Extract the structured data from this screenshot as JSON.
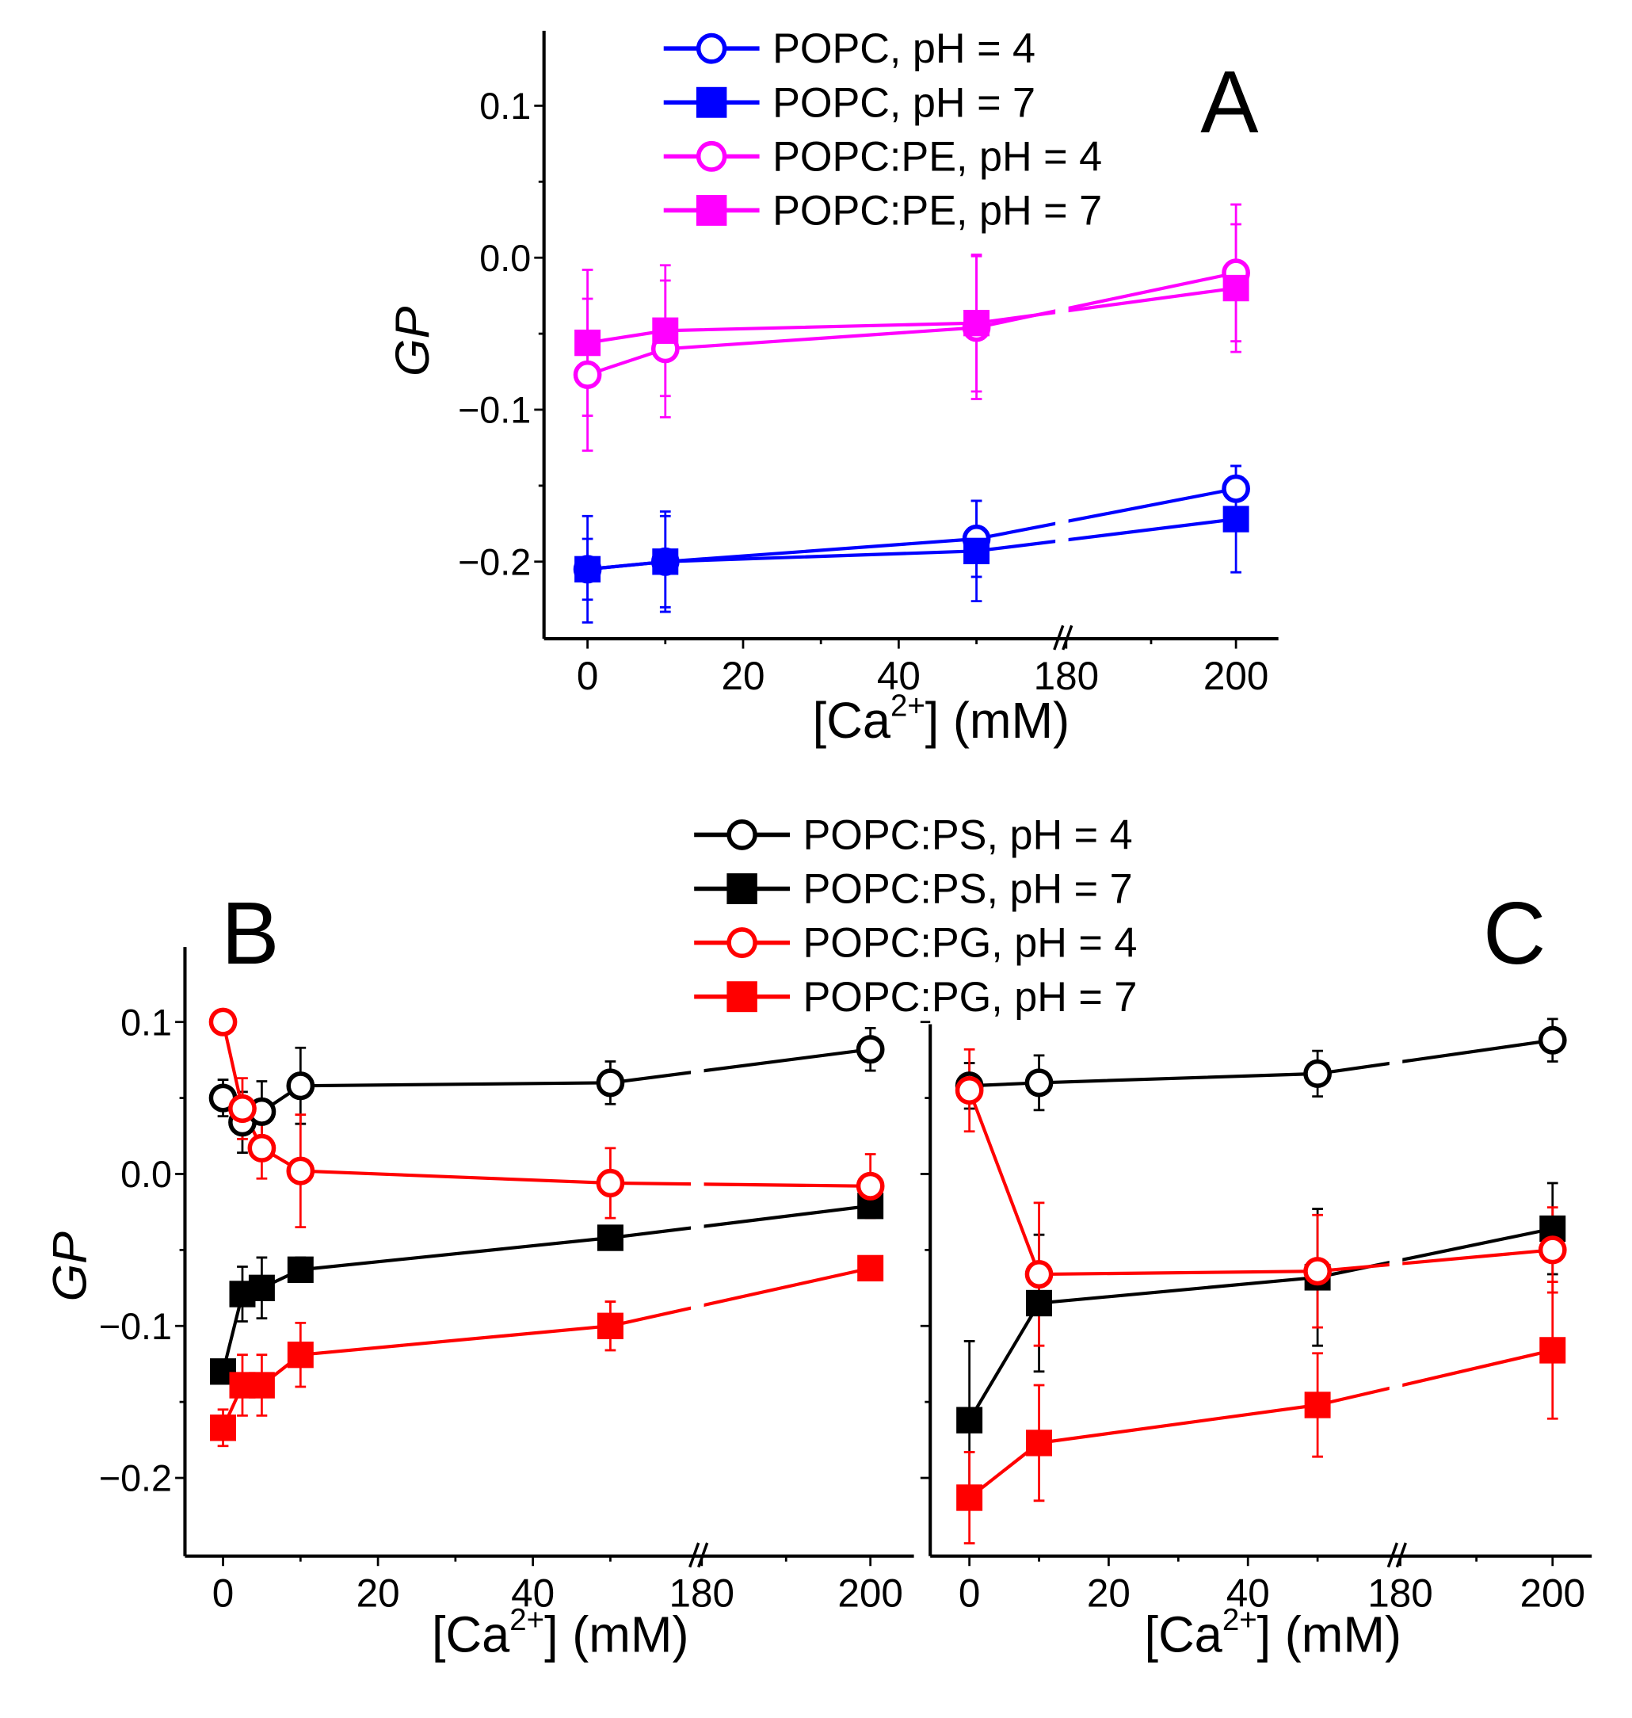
{
  "chart_data": [
    {
      "type": "line",
      "panel": "A",
      "xlabel": "[Ca2+] (mM)",
      "ylabel": "GP",
      "x_ticks": [
        "0",
        "20",
        "40",
        "180",
        "200"
      ],
      "y_ticks": [
        "0.1",
        "0.0",
        "−0.1",
        "−0.2"
      ],
      "ylim": [
        -0.25,
        0.15
      ],
      "x_break": [
        50,
        180
      ],
      "series": [
        {
          "name": "POPC, pH = 4",
          "color": "#0000ff",
          "marker": "open-circle",
          "x": [
            0,
            10,
            50,
            200
          ],
          "y": [
            -0.205,
            -0.2,
            -0.185,
            -0.152
          ],
          "err": [
            0.02,
            0.03,
            0.025,
            0.015
          ]
        },
        {
          "name": "POPC, pH = 7",
          "color": "#0000ff",
          "marker": "filled-square",
          "x": [
            0,
            10,
            50,
            200
          ],
          "y": [
            -0.205,
            -0.2,
            -0.193,
            -0.172
          ],
          "err": [
            0.035,
            0.033,
            0.033,
            0.035
          ]
        },
        {
          "name": "POPC:PE, pH = 4",
          "color": "#ff00ff",
          "marker": "open-circle",
          "x": [
            0,
            10,
            50,
            200
          ],
          "y": [
            -0.077,
            -0.06,
            -0.046,
            -0.01
          ],
          "err": [
            0.05,
            0.045,
            0.047,
            0.045
          ]
        },
        {
          "name": "POPC:PE, pH = 7",
          "color": "#ff00ff",
          "marker": "filled-square",
          "x": [
            0,
            10,
            50,
            200
          ],
          "y": [
            -0.056,
            -0.048,
            -0.043,
            -0.02
          ],
          "err": [
            0.048,
            0.043,
            0.045,
            0.042
          ]
        }
      ]
    },
    {
      "type": "line",
      "panel": "B",
      "xlabel": "[Ca2+] (mM)",
      "ylabel": "GP",
      "x_ticks": [
        "0",
        "20",
        "40",
        "180",
        "200"
      ],
      "y_ticks": [
        "0.1",
        "0.0",
        "−0.1",
        "−0.2"
      ],
      "ylim": [
        -0.25,
        0.15
      ],
      "x_break": [
        50,
        180
      ],
      "series": [
        {
          "name": "POPC:PS, pH = 4",
          "color": "#000000",
          "marker": "open-circle",
          "x": [
            0,
            2.5,
            5,
            10,
            50,
            200
          ],
          "y": [
            0.05,
            0.034,
            0.041,
            0.058,
            0.06,
            0.082
          ],
          "err": [
            0.012,
            0.02,
            0.02,
            0.025,
            0.014,
            0.014
          ]
        },
        {
          "name": "POPC:PS, pH = 7",
          "color": "#000000",
          "marker": "filled-square",
          "x": [
            0,
            2.5,
            5,
            10,
            50,
            200
          ],
          "y": [
            -0.13,
            -0.079,
            -0.075,
            -0.063,
            -0.042,
            -0.021
          ],
          "err": [
            0.005,
            0.018,
            0.02,
            0.008,
            0.005,
            0.008
          ]
        },
        {
          "name": "POPC:PG, pH = 4",
          "color": "#ff0000",
          "marker": "open-circle",
          "x": [
            0,
            2.5,
            5,
            10,
            50,
            200
          ],
          "y": [
            0.1,
            0.043,
            0.017,
            0.002,
            -0.006,
            -0.008
          ],
          "err": [
            0.005,
            0.02,
            0.02,
            0.037,
            0.023,
            0.021
          ]
        },
        {
          "name": "POPC:PG, pH = 7",
          "color": "#ff0000",
          "marker": "filled-square",
          "x": [
            0,
            2.5,
            5,
            10,
            50,
            200
          ],
          "y": [
            -0.167,
            -0.139,
            -0.139,
            -0.119,
            -0.1,
            -0.062
          ],
          "err": [
            0.012,
            0.02,
            0.02,
            0.021,
            0.016,
            0.005
          ]
        }
      ]
    },
    {
      "type": "line",
      "panel": "C",
      "xlabel": "[Ca2+] (mM)",
      "ylabel": "",
      "x_ticks": [
        "0",
        "20",
        "40",
        "180",
        "200"
      ],
      "y_ticks": [],
      "ylim": [
        -0.25,
        0.1
      ],
      "x_break": [
        50,
        180
      ],
      "series": [
        {
          "name": "POPC:PS, pH = 4",
          "color": "#000000",
          "marker": "open-circle",
          "x": [
            0,
            10,
            50,
            200
          ],
          "y": [
            0.058,
            0.06,
            0.066,
            0.088
          ],
          "err": [
            0.015,
            0.018,
            0.015,
            0.014
          ]
        },
        {
          "name": "POPC:PS, pH = 7",
          "color": "#000000",
          "marker": "filled-square",
          "x": [
            0,
            10,
            50,
            200
          ],
          "y": [
            -0.162,
            -0.085,
            -0.068,
            -0.036
          ],
          "err": [
            0.052,
            0.045,
            0.045,
            0.03
          ]
        },
        {
          "name": "POPC:PG, pH = 4",
          "color": "#ff0000",
          "marker": "open-circle",
          "x": [
            0,
            10,
            50,
            200
          ],
          "y": [
            0.055,
            -0.066,
            -0.064,
            -0.05
          ],
          "err": [
            0.027,
            0.047,
            0.037,
            0.028
          ]
        },
        {
          "name": "POPC:PG, pH = 7",
          "color": "#ff0000",
          "marker": "filled-square",
          "x": [
            0,
            10,
            50,
            200
          ],
          "y": [
            -0.213,
            -0.177,
            -0.152,
            -0.116
          ],
          "err": [
            0.03,
            0.038,
            0.034,
            0.045
          ]
        }
      ]
    }
  ],
  "labels": {
    "A": "A",
    "B": "B",
    "C": "C",
    "xlabel_main": "[Ca",
    "xlabel_sup": "2+",
    "xlabel_tail": "] (mM)",
    "ylabel": "GP"
  }
}
